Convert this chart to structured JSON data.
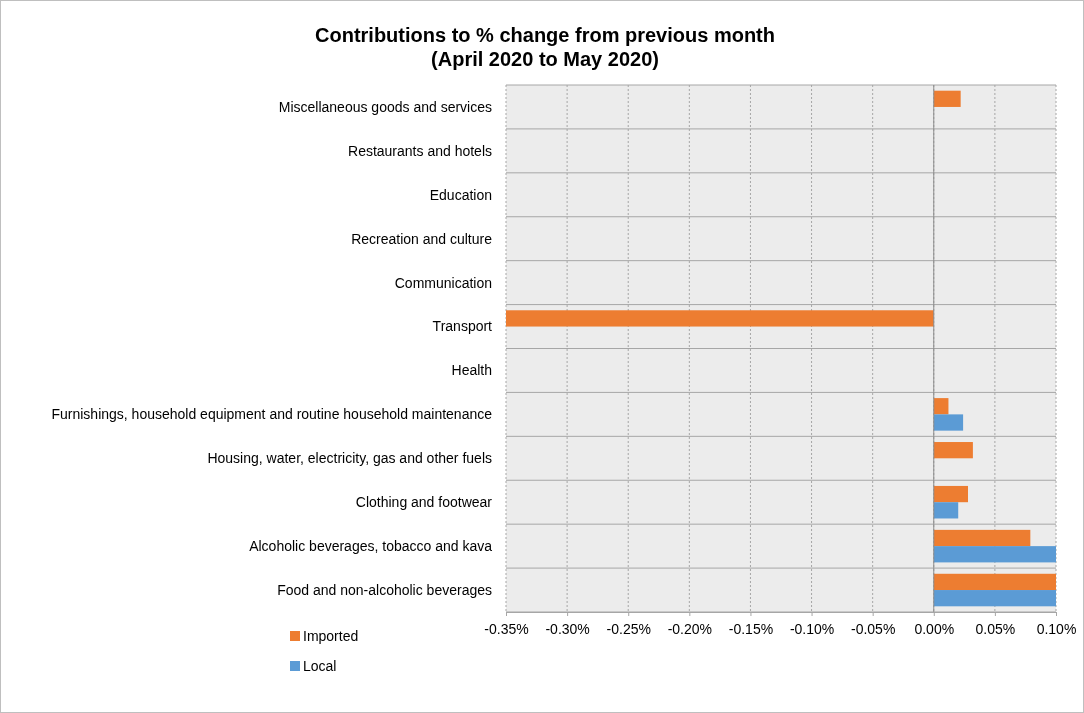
{
  "chart_data": {
    "type": "bar",
    "orientation": "horizontal",
    "title": "Contributions to % change from previous month\n(April 2020 to May 2020)",
    "categories": [
      "Miscellaneous goods and services",
      "Restaurants and hotels",
      "Education",
      "Recreation and culture",
      "Communication",
      "Transport",
      "Health",
      "Furnishings, household equipment and routine household maintenance",
      "Housing, water, electricity, gas and other fuels",
      "Clothing and footwear",
      "Alcoholic beverages, tobacco and kava",
      "Food and non-alcoholic beverages"
    ],
    "series": [
      {
        "name": "Imported",
        "color": "#ed7d31",
        "values": [
          0.022,
          null,
          null,
          null,
          null,
          -0.35,
          null,
          0.012,
          0.032,
          0.028,
          0.079,
          0.1
        ]
      },
      {
        "name": "Local",
        "color": "#5b9bd5",
        "values": [
          null,
          null,
          null,
          null,
          null,
          null,
          null,
          0.024,
          null,
          0.02,
          0.1,
          0.1
        ]
      }
    ],
    "xlim": [
      -0.35,
      0.1
    ],
    "xticks": [
      {
        "value": -0.35,
        "label": "-0.35%"
      },
      {
        "value": -0.3,
        "label": "-0.30%"
      },
      {
        "value": -0.25,
        "label": "-0.25%"
      },
      {
        "value": -0.2,
        "label": "-0.20%"
      },
      {
        "value": -0.15,
        "label": "-0.15%"
      },
      {
        "value": -0.1,
        "label": "-0.10%"
      },
      {
        "value": -0.05,
        "label": "-0.05%"
      },
      {
        "value": 0,
        "label": "0.00%"
      },
      {
        "value": 0.05,
        "label": "0.05%"
      },
      {
        "value": 0.1,
        "label": "0.10%"
      }
    ],
    "grid": true,
    "legend": "bottom left"
  }
}
